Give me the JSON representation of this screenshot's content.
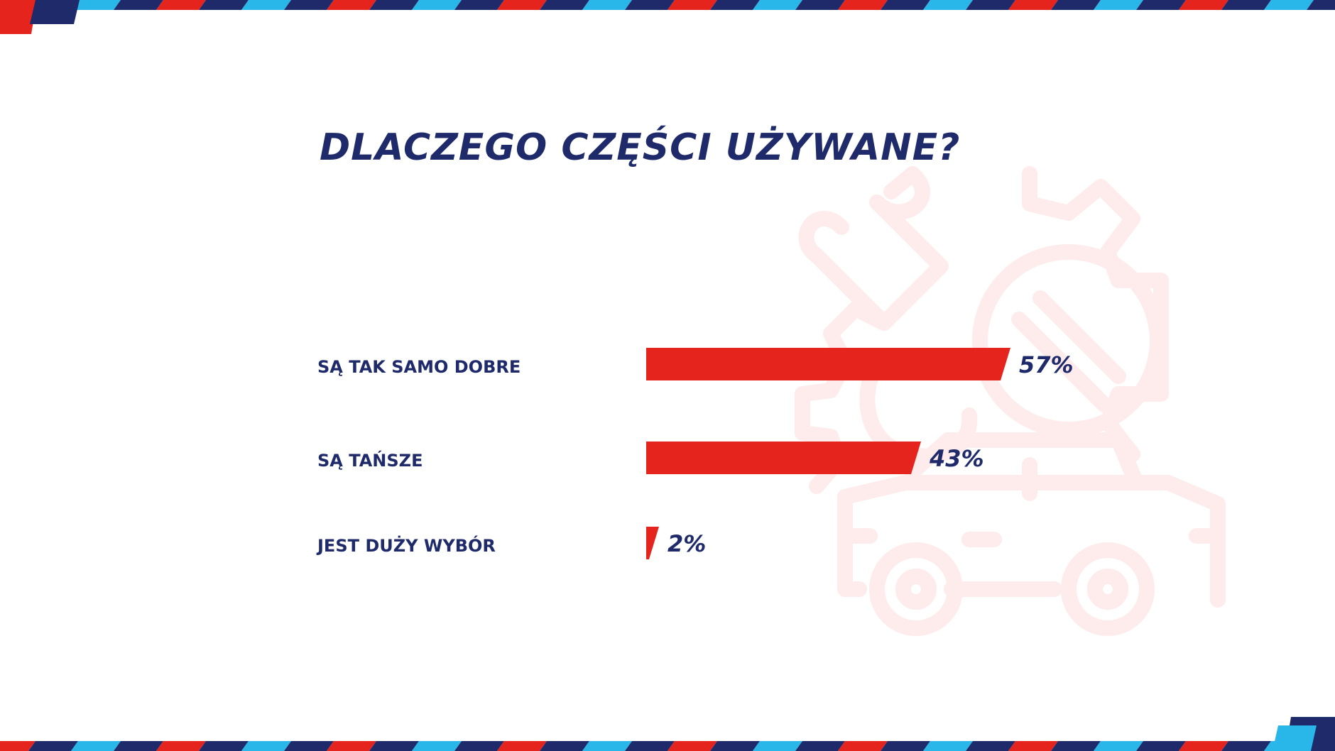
{
  "colors": {
    "navy": "#1f2a6b",
    "red": "#e5241d",
    "cyan": "#29b6e8",
    "illustration": "#fdeceb"
  },
  "decor": {
    "stripe_pattern": [
      "red",
      "navy",
      "cyan",
      "navy"
    ],
    "background_icon": "car-gear-wrench-icon"
  },
  "chart_data": {
    "type": "bar",
    "orientation": "horizontal",
    "title": "DLACZEGO CZĘŚCI UŻYWANE?",
    "categories": [
      "SĄ TAK SAMO DOBRE",
      "SĄ TAŃSZE",
      "JEST DUŻY WYBÓR"
    ],
    "values": [
      57,
      43,
      2
    ],
    "value_labels": [
      "57%",
      "43%",
      "2%"
    ],
    "unit": "%",
    "xlim": [
      0,
      100
    ],
    "grid": false,
    "legend": "none"
  }
}
